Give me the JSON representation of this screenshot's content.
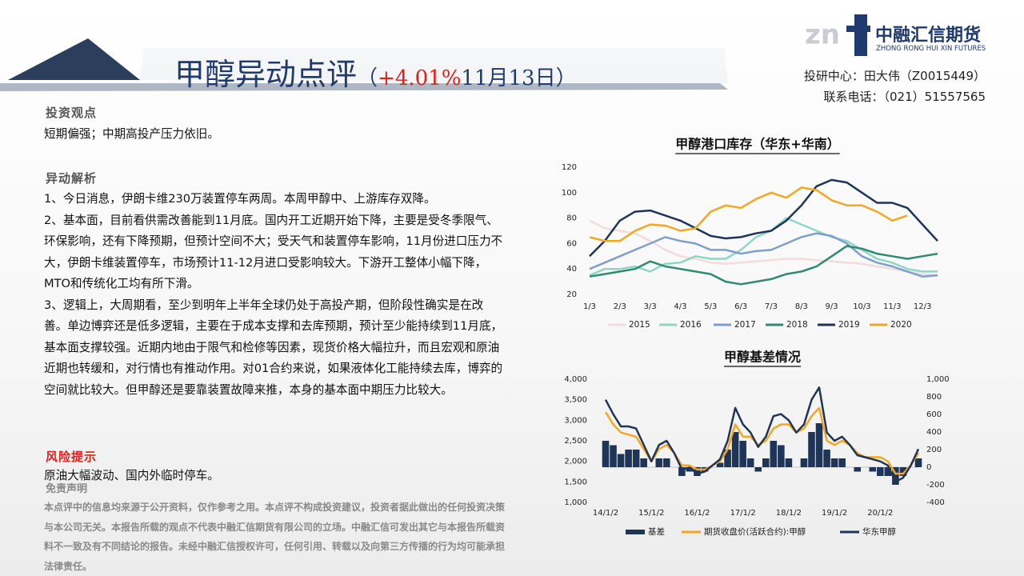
{
  "header": {
    "title": "甲醇异动点评",
    "change_prefix": "（",
    "change": "+4.01%",
    "date": "11月13日）",
    "logo_mark": "f",
    "company": "中融汇信期货",
    "company_en": "ZHONG RONG HUI XIN FUTURES",
    "contact": [
      "投研中心：田大伟（Z0015449）",
      "联系电话：（021）51557565"
    ]
  },
  "sections": [
    {
      "heading": "投资观点",
      "paragraphs": [
        "短期偏强；中期高投产压力依旧。"
      ]
    },
    {
      "heading": "异动解析",
      "paragraphs": [
        "1、今日消息，伊朗卡维230万装置停车两周。本周甲醇中、上游库存双降。",
        "2、基本面，目前看供需改善能到11月底。国内开工近期开始下降，主要是受冬季限气、环保影响，还有下降预期，但预计空间不大；受天气和装置停车影响，11月份进口压力不大，伊朗卡维装置停车，市场预计11-12月进口受影响较大。下游开工整体小幅下降，MTO和传统化工均有所下滑。",
        "3、逻辑上，大周期看，至少到明年上半年全球仍处于高投产期，但阶段性确实是在改善。单边博弈还是低多逻辑，主要在于成本支撑和去库预期，预计至少能持续到11月底，基本面支撑较强。近期内地由于限气和检修等因素，现货价格大幅拉升，而且宏观和原油近期也转缓和，对行情也有推动作用。对01合约来说，如果液体化工能持续去库，博弈的空间就比较大。但甲醇还是要靠装置故障来推，本身的基本面中期压力比较大。"
      ]
    },
    {
      "heading": "风险提示",
      "paragraphs": [
        "原油大幅波动、国内外临时停车。"
      ]
    }
  ],
  "disclaimer": {
    "heading": "免责声明",
    "text": "本点评中的信息均来源于公开资料，仅作参考之用。本点评不构成投资建议，投资者据此做出的任何投资决策与本公司无关。本报告所载的观点不代表中融汇信期货有限公司的立场。中融汇信可发出其它与本报告所载资料不一致及有不同结论的报告。未经中融汇信授权许可，任何引用、转载以及向第三方传播的行为均可能承担法律责任。"
  },
  "chart_data": [
    {
      "type": "line",
      "title": "甲醇港口库存（华东+华南）",
      "grid": false,
      "legend": "bottom",
      "categories": [
        "1/3",
        null,
        "2/3",
        null,
        "3/3",
        null,
        "4/3",
        null,
        "5/3",
        null,
        "6/3",
        null,
        "7/3",
        null,
        "8/3",
        null,
        "9/3",
        null,
        "10/3",
        null,
        "11/3",
        null,
        "12/3",
        null
      ],
      "ylim": [
        20,
        120
      ],
      "yticks": [
        20,
        40,
        60,
        80,
        100,
        120
      ],
      "series": [
        {
          "name": "2015",
          "color": "#f2dcdc",
          "values": [
            78,
            72,
            70,
            68,
            62,
            55,
            50,
            48,
            45,
            44,
            45,
            46,
            47,
            48,
            48,
            47,
            46,
            45,
            44,
            42,
            40,
            38,
            36,
            35
          ]
        },
        {
          "name": "2016",
          "color": "#8fd6c6",
          "values": [
            35,
            40,
            40,
            42,
            38,
            44,
            45,
            50,
            48,
            48,
            55,
            65,
            70,
            80,
            75,
            70,
            65,
            62,
            55,
            48,
            45,
            40,
            38,
            38
          ]
        },
        {
          "name": "2017",
          "color": "#7f9fcb",
          "values": [
            40,
            45,
            50,
            55,
            60,
            65,
            62,
            60,
            55,
            55,
            52,
            54,
            55,
            60,
            65,
            68,
            66,
            60,
            50,
            45,
            42,
            38,
            34,
            35
          ]
        },
        {
          "name": "2018",
          "color": "#2e8b6f",
          "values": [
            34,
            36,
            38,
            40,
            46,
            42,
            40,
            38,
            36,
            30,
            28,
            30,
            32,
            36,
            38,
            42,
            50,
            58,
            56,
            52,
            50,
            48,
            50,
            52
          ]
        },
        {
          "name": "2019",
          "color": "#1f3558",
          "values": [
            50,
            62,
            78,
            85,
            86,
            82,
            78,
            72,
            66,
            64,
            65,
            68,
            70,
            78,
            90,
            105,
            110,
            108,
            100,
            92,
            92,
            88,
            75,
            62
          ]
        },
        {
          "name": "2020",
          "color": "#f5a623",
          "values": [
            65,
            62,
            62,
            70,
            75,
            74,
            70,
            72,
            85,
            90,
            88,
            95,
            100,
            96,
            104,
            102,
            94,
            90,
            90,
            85,
            78,
            82,
            null,
            null
          ]
        }
      ]
    },
    {
      "type": "combo",
      "title": "甲醇基差情况",
      "grid": false,
      "legend": "bottom",
      "categories": [
        "14/1/2",
        null,
        null,
        null,
        null,
        null,
        "15/1/2",
        null,
        null,
        null,
        null,
        null,
        "16/1/2",
        null,
        null,
        null,
        null,
        null,
        "17/1/2",
        null,
        null,
        null,
        null,
        null,
        "18/1/2",
        null,
        null,
        null,
        null,
        null,
        "19/1/2",
        null,
        null,
        null,
        null,
        null,
        "20/1/2",
        null,
        null,
        null,
        null,
        null
      ],
      "ylim": [
        1000,
        4000
      ],
      "yticks": [
        {
          "value": 1000,
          "label": "1,000"
        },
        {
          "value": 1500,
          "label": "1,500"
        },
        {
          "value": 2000,
          "label": "2,000"
        },
        {
          "value": 2500,
          "label": "2,500"
        },
        {
          "value": 3000,
          "label": "3,000"
        },
        {
          "value": 3500,
          "label": "3,500"
        },
        {
          "value": 4000,
          "label": "4,000"
        }
      ],
      "y2lim": [
        -400,
        1000
      ],
      "y2ticks": [
        -400,
        -200,
        0,
        200,
        400,
        600,
        800,
        {
          "value": 1000,
          "label": "1,000"
        }
      ],
      "series": [
        {
          "name": "基差",
          "type": "bar",
          "axis": "y2",
          "color": "#1f3558",
          "values": [
            300,
            250,
            150,
            200,
            200,
            100,
            0,
            100,
            100,
            0,
            -100,
            -50,
            -100,
            -50,
            0,
            50,
            200,
            400,
            300,
            100,
            -50,
            100,
            300,
            250,
            100,
            0,
            100,
            400,
            500,
            200,
            100,
            100,
            0,
            -50,
            0,
            -50,
            -100,
            -100,
            -200,
            -100,
            0,
            100
          ]
        },
        {
          "name": "期货收盘价(活跃合约):甲醇",
          "type": "line",
          "color": "#f5a623",
          "values": [
            3200,
            2900,
            2700,
            2650,
            2600,
            2300,
            2000,
            2300,
            2400,
            2200,
            1900,
            1900,
            1800,
            1800,
            1900,
            2000,
            2300,
            2900,
            2600,
            2600,
            2400,
            2500,
            2800,
            2900,
            2900,
            2700,
            2800,
            3100,
            3300,
            2500,
            2400,
            2500,
            2400,
            2200,
            2100,
            2100,
            2100,
            2000,
            1700,
            1700,
            1900,
            2200
          ]
        },
        {
          "name": "华东甲醇",
          "type": "line",
          "color": "#1f3558",
          "values": [
            3500,
            3150,
            2850,
            2850,
            2800,
            2400,
            2000,
            2400,
            2500,
            2200,
            1800,
            1850,
            1700,
            1750,
            1900,
            2050,
            2500,
            3300,
            2900,
            2700,
            2350,
            2600,
            3100,
            3150,
            3000,
            2700,
            2900,
            3500,
            3800,
            2700,
            2500,
            2600,
            2400,
            2150,
            2100,
            2050,
            2000,
            1900,
            1500,
            1600,
            1900,
            2300
          ]
        }
      ]
    }
  ]
}
